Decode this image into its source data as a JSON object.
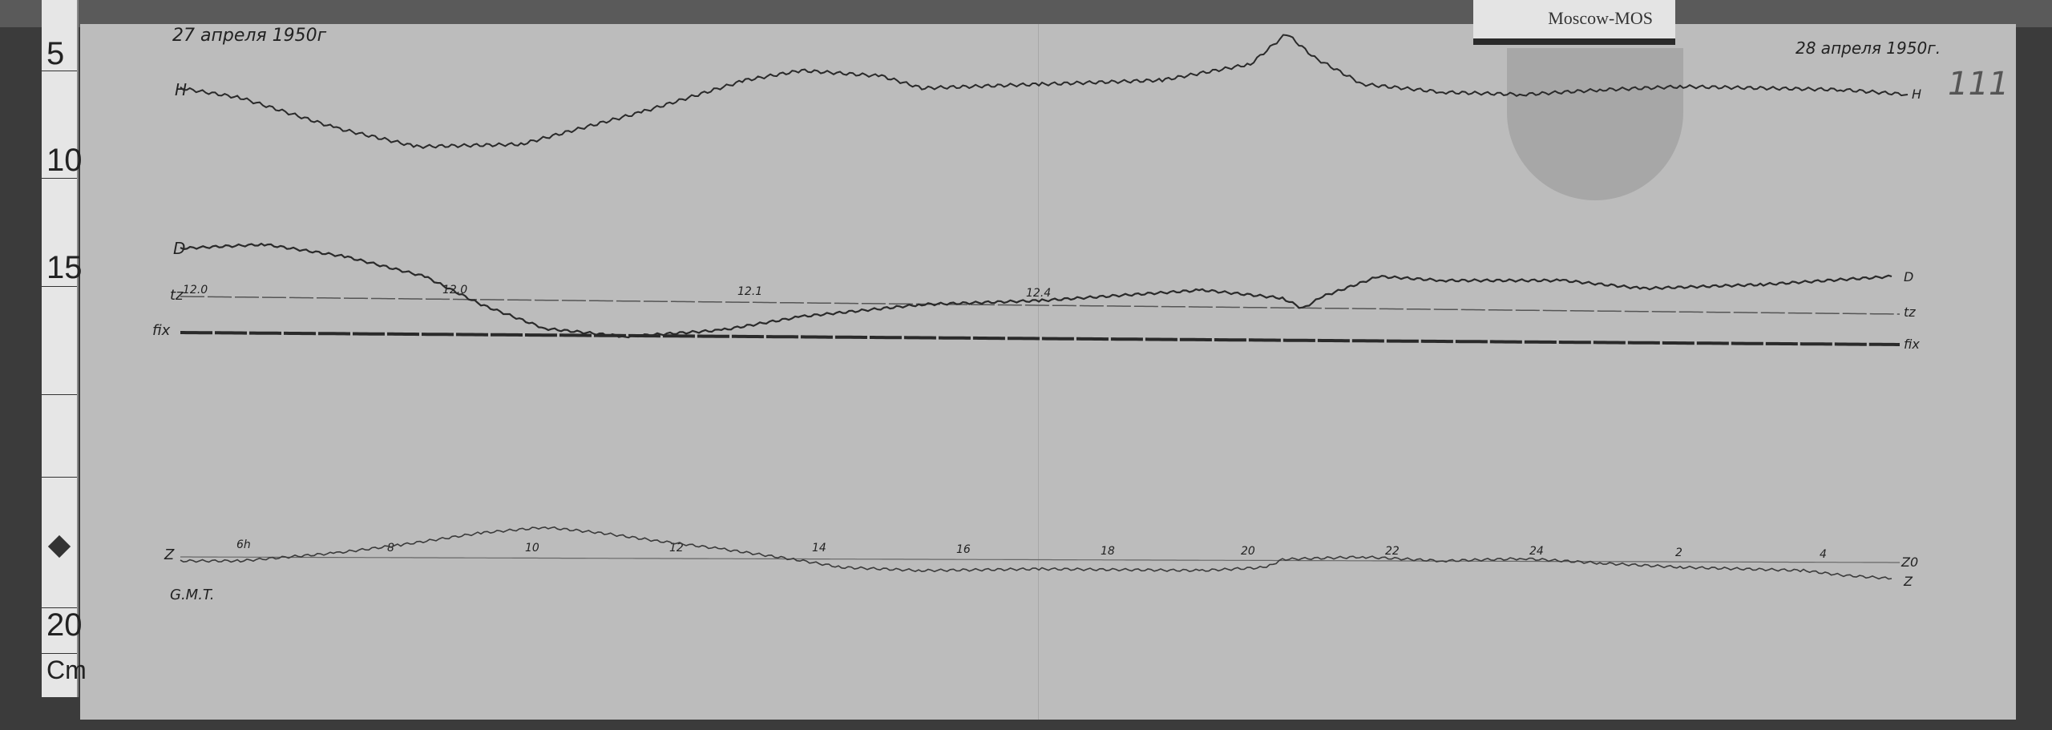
{
  "station_label": "Moscow-MOS",
  "date_start": "27 апреля 1950г",
  "date_end": "28 апреля 1950г.",
  "sheet_number": "111",
  "ruler": {
    "marks": [
      "5",
      "10",
      "15",
      "20"
    ],
    "unit": "Cm"
  },
  "traces": {
    "H": {
      "label_left": "H",
      "label_right": "H"
    },
    "D": {
      "label_left": "D",
      "label_right": "D"
    },
    "tz": {
      "label_left": "tz",
      "label_right": "tz",
      "temps": [
        "12.0",
        "12.0",
        "12.1",
        "12.4"
      ]
    },
    "fix": {
      "label_left": "fix",
      "label_right": "fix"
    },
    "Z": {
      "label_left": "Z",
      "label_right": "Z",
      "label_z0": "Z0"
    }
  },
  "time_axis": {
    "label": "G.M.T.",
    "hours": [
      "6h",
      "8",
      "10",
      "12",
      "14",
      "16",
      "18",
      "20",
      "22",
      "24",
      "2",
      "4"
    ]
  },
  "colors": {
    "paper": "#bcbcbc",
    "ink": "#2a2a2a",
    "background": "#3b3b3b"
  }
}
